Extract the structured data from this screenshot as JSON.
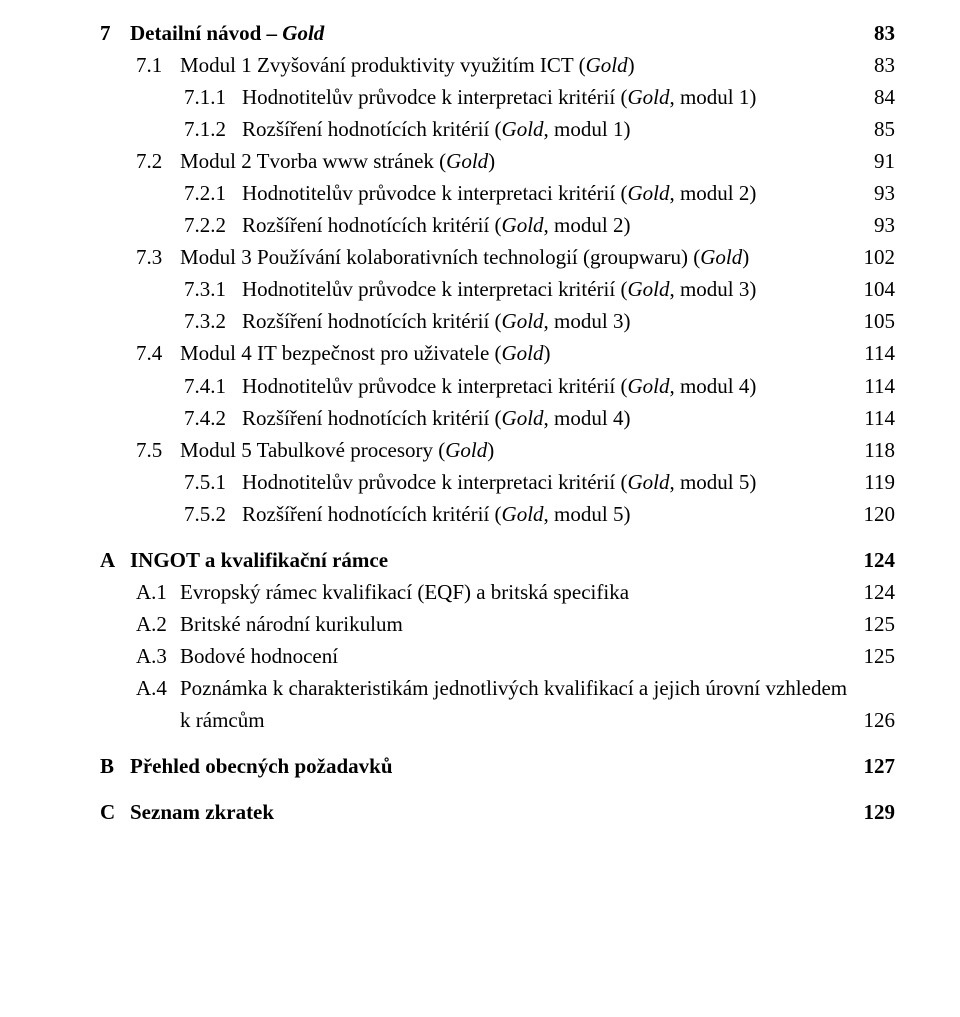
{
  "page": {
    "background_color": "#ffffff",
    "text_color": "#000000",
    "font_family": "Palatino",
    "base_fontsize_pt": 16
  },
  "toc": [
    {
      "level": 0,
      "num": "7",
      "title_parts": [
        "Detailní návod – ",
        {
          "em": "Gold"
        }
      ],
      "page": "83",
      "bold": true,
      "dots": false
    },
    {
      "level": 1,
      "num": "7.1",
      "title_parts": [
        "Modul 1 Zvyšování produktivity využitím ICT (",
        {
          "em": "Gold"
        },
        ")"
      ],
      "page": "83",
      "bold": false,
      "dots": true
    },
    {
      "level": 2,
      "num": "7.1.1",
      "title_parts": [
        "Hodnotitelův průvodce k interpretaci kritérií (",
        {
          "em": "Gold"
        },
        ", modul 1)"
      ],
      "page": "84",
      "bold": false,
      "dots": true
    },
    {
      "level": 2,
      "num": "7.1.2",
      "title_parts": [
        "Rozšíření hodnotících kritérií (",
        {
          "em": "Gold"
        },
        ", modul 1)"
      ],
      "page": "85",
      "bold": false,
      "dots": true
    },
    {
      "level": 1,
      "num": "7.2",
      "title_parts": [
        "Modul 2 Tvorba www stránek (",
        {
          "em": "Gold"
        },
        ")"
      ],
      "page": "91",
      "bold": false,
      "dots": true
    },
    {
      "level": 2,
      "num": "7.2.1",
      "title_parts": [
        "Hodnotitelův průvodce k interpretaci kritérií (",
        {
          "em": "Gold"
        },
        ", modul 2)"
      ],
      "page": "93",
      "bold": false,
      "dots": true
    },
    {
      "level": 2,
      "num": "7.2.2",
      "title_parts": [
        "Rozšíření hodnotících kritérií (",
        {
          "em": "Gold"
        },
        ", modul 2)"
      ],
      "page": "93",
      "bold": false,
      "dots": true
    },
    {
      "level": 1,
      "num": "7.3",
      "title_parts": [
        "Modul 3 Používání kolaborativních technologií (groupwaru) (",
        {
          "em": "Gold"
        },
        ")"
      ],
      "page": "102",
      "bold": false,
      "dots": true
    },
    {
      "level": 2,
      "num": "7.3.1",
      "title_parts": [
        "Hodnotitelův průvodce k interpretaci kritérií (",
        {
          "em": "Gold"
        },
        ", modul 3)"
      ],
      "page": "104",
      "bold": false,
      "dots": true
    },
    {
      "level": 2,
      "num": "7.3.2",
      "title_parts": [
        "Rozšíření hodnotících kritérií (",
        {
          "em": "Gold"
        },
        ", modul 3)"
      ],
      "page": "105",
      "bold": false,
      "dots": true
    },
    {
      "level": 1,
      "num": "7.4",
      "title_parts": [
        "Modul 4 IT bezpečnost pro uživatele (",
        {
          "em": "Gold"
        },
        ")"
      ],
      "page": "114",
      "bold": false,
      "dots": true
    },
    {
      "level": 2,
      "num": "7.4.1",
      "title_parts": [
        "Hodnotitelův průvodce k interpretaci kritérií (",
        {
          "em": "Gold"
        },
        ", modul 4)"
      ],
      "page": "114",
      "bold": false,
      "dots": true
    },
    {
      "level": 2,
      "num": "7.4.2",
      "title_parts": [
        "Rozšíření hodnotících kritérií (",
        {
          "em": "Gold"
        },
        ", modul 4)"
      ],
      "page": "114",
      "bold": false,
      "dots": true
    },
    {
      "level": 1,
      "num": "7.5",
      "title_parts": [
        "Modul 5 Tabulkové procesory (",
        {
          "em": "Gold"
        },
        ")"
      ],
      "page": "118",
      "bold": false,
      "dots": true
    },
    {
      "level": 2,
      "num": "7.5.1",
      "title_parts": [
        "Hodnotitelův průvodce k interpretaci kritérií (",
        {
          "em": "Gold"
        },
        ", modul 5)"
      ],
      "page": "119",
      "bold": false,
      "dots": true
    },
    {
      "level": 2,
      "num": "7.5.2",
      "title_parts": [
        "Rozšíření hodnotících kritérií (",
        {
          "em": "Gold"
        },
        ", modul 5)"
      ],
      "page": "120",
      "bold": false,
      "dots": true
    },
    {
      "level": 0,
      "num": "A",
      "title_parts": [
        "INGOT a kvalifikační rámce"
      ],
      "page": "124",
      "bold": true,
      "dots": false
    },
    {
      "level": 1,
      "num": "A.1",
      "title_parts": [
        "Evropský rámec kvalifikací (EQF) a britská specifika"
      ],
      "page": "124",
      "bold": false,
      "dots": true
    },
    {
      "level": 1,
      "num": "A.2",
      "title_parts": [
        "Britské národní kurikulum"
      ],
      "page": "125",
      "bold": false,
      "dots": true
    },
    {
      "level": 1,
      "num": "A.3",
      "title_parts": [
        "Bodové hodnocení"
      ],
      "page": "125",
      "bold": false,
      "dots": true
    },
    {
      "level": 1,
      "num": "A.4",
      "title_parts": [
        "Poznámka k charakteristikám jednotlivých kvalifikací a jejich úrovní vzhledem"
      ],
      "page": "",
      "bold": false,
      "dots": false,
      "nowrapbreak": true
    },
    {
      "level": 1,
      "num": "",
      "title_parts": [
        "k rámcům"
      ],
      "page": "126",
      "bold": false,
      "dots": true,
      "continuation": true
    },
    {
      "level": 0,
      "num": "B",
      "title_parts": [
        "Přehled obecných požadavků"
      ],
      "page": "127",
      "bold": true,
      "dots": false
    },
    {
      "level": 0,
      "num": "C",
      "title_parts": [
        "Seznam zkratek"
      ],
      "page": "129",
      "bold": true,
      "dots": false
    }
  ]
}
